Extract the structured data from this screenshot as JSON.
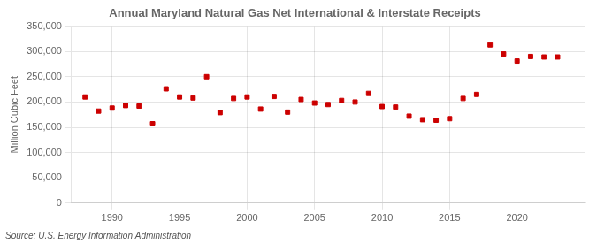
{
  "chart_data": {
    "type": "scatter",
    "title": "Annual Maryland Natural Gas Net International & Interstate Receipts",
    "ylabel": "Million Cubic Feet",
    "annotation": "Source: U.S. Energy Information Administration",
    "x": [
      1988,
      1989,
      1990,
      1991,
      1992,
      1993,
      1994,
      1995,
      1996,
      1997,
      1998,
      1999,
      2000,
      2001,
      2002,
      2003,
      2004,
      2005,
      2006,
      2007,
      2008,
      2009,
      2010,
      2011,
      2012,
      2013,
      2014,
      2015,
      2016,
      2017,
      2018,
      2019,
      2020,
      2021,
      2022,
      2023
    ],
    "values": [
      210000,
      182000,
      188000,
      193000,
      192000,
      157000,
      226000,
      210000,
      208000,
      250000,
      179000,
      207000,
      210000,
      186000,
      211000,
      180000,
      205000,
      198000,
      195000,
      203000,
      200000,
      217000,
      191000,
      190000,
      172000,
      165000,
      164000,
      167000,
      207000,
      215000,
      313000,
      295000,
      281000,
      290000,
      289000,
      289000
    ],
    "color": "#cc0000",
    "marker": "square",
    "xlim": [
      1987,
      2025
    ],
    "xticks": [
      1990,
      1995,
      2000,
      2005,
      2010,
      2015,
      2020
    ],
    "ylim": [
      0,
      350000
    ],
    "yticks": [
      0,
      {
        "value": 50000,
        "label": "50,000"
      },
      {
        "value": 100000,
        "label": "100,000"
      },
      {
        "value": 150000,
        "label": "150,000"
      },
      {
        "value": 200000,
        "label": "200,000"
      },
      {
        "value": 250000,
        "label": "250,000"
      },
      {
        "value": 300000,
        "label": "300,000"
      },
      {
        "value": 350000,
        "label": "350,000"
      }
    ],
    "grid": true
  }
}
